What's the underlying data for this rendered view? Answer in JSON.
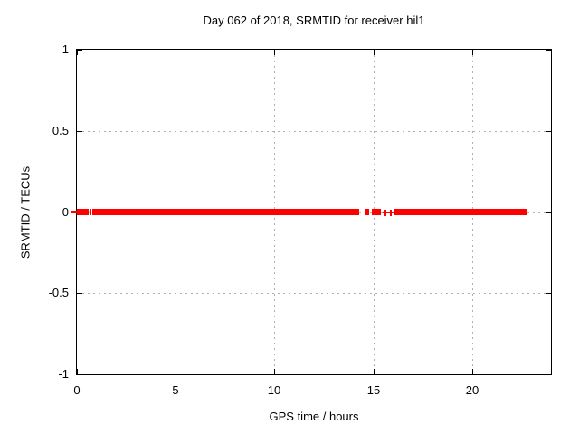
{
  "colors": {
    "background": "#ffffff",
    "axis": "#000000",
    "grid": "#b0b0b0",
    "series": "#ff0000",
    "text": "#000000"
  },
  "chart_data": {
    "type": "scatter",
    "title": "Day 062 of 2018, SRMTID for receiver hil1",
    "xlabel": "GPS time / hours",
    "ylabel": "SRMTID / TECUs",
    "xlim": [
      0,
      24
    ],
    "ylim": [
      -1,
      1
    ],
    "xticks": [
      0,
      5,
      10,
      15,
      20
    ],
    "xtick_labels": [
      "0",
      "5",
      "10",
      "15",
      "20"
    ],
    "yticks": [
      1,
      0.5,
      0,
      -0.5,
      -1
    ],
    "ytick_labels": [
      "1",
      "0.5",
      "0",
      "-0.5",
      "-1"
    ],
    "grid": true,
    "legend": "none",
    "series_name": "SRMTID",
    "y_value": 0,
    "segments_hours": [
      {
        "start": -0.3,
        "end": 0.0,
        "thin": true
      },
      {
        "start": 0.0,
        "end": 0.6
      },
      {
        "start": 0.65,
        "end": 0.71
      },
      {
        "start": 0.76,
        "end": 14.3
      },
      {
        "start": 14.62,
        "end": 14.8
      },
      {
        "start": 14.95,
        "end": 15.4
      },
      {
        "start": 16.05,
        "end": 22.77
      }
    ],
    "isolated_points_hours": [
      15.63,
      15.9
    ],
    "marker": "plus",
    "note_visible_only": "All plotted SRMTID values lie at 0 TECUs"
  }
}
